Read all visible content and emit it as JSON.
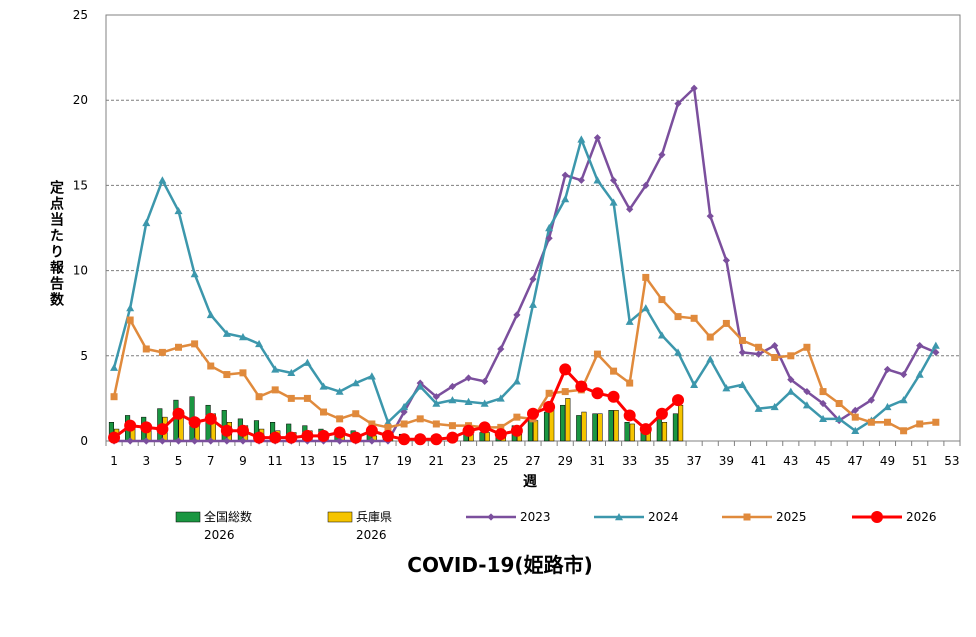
{
  "chart_data": {
    "type": "bar",
    "title": "COVID-19(姫路市)",
    "xlabel": "週",
    "ylabel": "定点当たり報告数",
    "ylim": [
      0,
      25
    ],
    "yticks": [
      0,
      5,
      10,
      15,
      20,
      25
    ],
    "xlim": [
      1,
      53
    ],
    "xticks": [
      1,
      3,
      5,
      7,
      9,
      11,
      13,
      15,
      17,
      19,
      21,
      23,
      25,
      27,
      29,
      31,
      33,
      35,
      37,
      39,
      41,
      43,
      45,
      47,
      49,
      51,
      53
    ],
    "grid": "horizontal dashed",
    "legend_position": "bottom",
    "colors": {
      "national": "#1a9641",
      "hyogo": "#f5c400",
      "y2023": "#7b4f9d",
      "y2024": "#3c97ac",
      "y2025": "#e08a3c",
      "y2026": "#ff0000"
    },
    "bar_series": [
      {
        "key": "national",
        "name": "全国総数",
        "name2": "2026",
        "values": [
          1.1,
          1.5,
          1.4,
          1.9,
          2.4,
          2.6,
          2.1,
          1.8,
          1.3,
          1.2,
          1.1,
          1.0,
          0.9,
          0.7,
          0.6,
          0.6,
          0.6,
          0.5,
          0.4,
          0.3,
          0.3,
          0.3,
          0.4,
          0.5,
          0.6,
          0.9,
          1.2,
          1.7,
          2.1,
          1.5,
          1.6,
          1.8,
          1.1,
          0.9,
          1.3,
          1.6
        ]
      },
      {
        "key": "hyogo",
        "name": "兵庫県",
        "name2": "2026",
        "values": [
          0.7,
          1.0,
          0.9,
          1.4,
          1.8,
          1.3,
          1.6,
          1.1,
          0.9,
          0.7,
          0.6,
          0.5,
          0.6,
          0.4,
          0.3,
          0.3,
          0.3,
          0.3,
          0.2,
          0.2,
          0.2,
          0.3,
          0.4,
          0.5,
          0.6,
          0.8,
          1.2,
          1.9,
          2.5,
          1.7,
          1.6,
          1.8,
          1.0,
          0.9,
          1.1,
          2.1
        ]
      }
    ],
    "line_series": [
      {
        "key": "y2023",
        "name": "2023",
        "marker": "diamond",
        "values": [
          0,
          0,
          0,
          0,
          0,
          0,
          0,
          0,
          0,
          0,
          0,
          0,
          0,
          0,
          0,
          0,
          0,
          0,
          1.7,
          3.4,
          2.6,
          3.2,
          3.7,
          3.5,
          5.4,
          7.4,
          9.5,
          11.9,
          15.6,
          15.3,
          17.8,
          15.3,
          13.6,
          15.0,
          16.8,
          19.8,
          20.7,
          13.2,
          10.6,
          5.2,
          5.1,
          5.6,
          3.6,
          2.9,
          2.2,
          1.2,
          1.8,
          2.4,
          4.2,
          3.9,
          5.6,
          5.2
        ]
      },
      {
        "key": "y2024",
        "name": "2024",
        "marker": "triangle",
        "values": [
          4.3,
          7.8,
          12.8,
          15.3,
          13.5,
          9.8,
          7.4,
          6.3,
          6.1,
          5.7,
          4.2,
          4.0,
          4.6,
          3.2,
          2.9,
          3.4,
          3.8,
          1.1,
          2.0,
          3.2,
          2.2,
          2.4,
          2.3,
          2.2,
          2.5,
          3.5,
          8.0,
          12.5,
          14.2,
          17.7,
          15.3,
          14.0,
          7.0,
          7.8,
          6.2,
          5.2,
          3.3,
          4.8,
          3.1,
          3.3,
          1.9,
          2.0,
          2.9,
          2.1,
          1.3,
          1.3,
          0.6,
          1.2,
          2.0,
          2.4,
          3.9,
          5.6
        ]
      },
      {
        "key": "y2025",
        "name": "2025",
        "marker": "square",
        "values": [
          2.6,
          7.1,
          5.4,
          5.2,
          5.5,
          5.7,
          4.4,
          3.9,
          4.0,
          2.6,
          3.0,
          2.5,
          2.5,
          1.7,
          1.3,
          1.6,
          1.0,
          0.8,
          1.0,
          1.3,
          1.0,
          0.9,
          0.9,
          0.8,
          0.8,
          1.4,
          1.3,
          2.8,
          2.9,
          3.0,
          5.1,
          4.1,
          3.4,
          9.6,
          8.3,
          7.3,
          7.2,
          6.1,
          6.9,
          5.9,
          5.5,
          4.9,
          5.0,
          5.5,
          2.9,
          2.2,
          1.4,
          1.1,
          1.1,
          0.6,
          1.0,
          1.1
        ]
      },
      {
        "key": "y2026",
        "name": "2026",
        "marker": "circle",
        "values": [
          0.2,
          0.9,
          0.8,
          0.7,
          1.6,
          1.1,
          1.3,
          0.6,
          0.6,
          0.2,
          0.2,
          0.2,
          0.3,
          0.3,
          0.5,
          0.2,
          0.6,
          0.3,
          0.1,
          0.1,
          0.1,
          0.2,
          0.6,
          0.8,
          0.4,
          0.6,
          1.6,
          2.0,
          4.2,
          3.2,
          2.8,
          2.6,
          1.5,
          0.7,
          1.6,
          2.4
        ]
      }
    ]
  }
}
